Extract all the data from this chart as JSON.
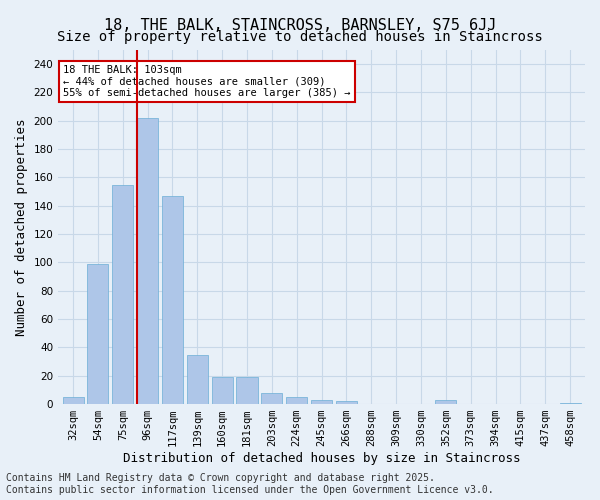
{
  "title1": "18, THE BALK, STAINCROSS, BARNSLEY, S75 6JJ",
  "title2": "Size of property relative to detached houses in Staincross",
  "xlabel": "Distribution of detached houses by size in Staincross",
  "ylabel": "Number of detached properties",
  "categories": [
    "32sqm",
    "54sqm",
    "75sqm",
    "96sqm",
    "117sqm",
    "139sqm",
    "160sqm",
    "181sqm",
    "203sqm",
    "224sqm",
    "245sqm",
    "266sqm",
    "288sqm",
    "309sqm",
    "330sqm",
    "352sqm",
    "373sqm",
    "394sqm",
    "415sqm",
    "437sqm",
    "458sqm"
  ],
  "values": [
    5,
    99,
    155,
    202,
    147,
    35,
    19,
    19,
    8,
    5,
    3,
    2,
    0,
    0,
    0,
    3,
    0,
    0,
    0,
    0,
    1
  ],
  "bar_color": "#aec6e8",
  "bar_edgecolor": "#6baed6",
  "highlight_index": 3,
  "highlight_bar_color": "#aec6e8",
  "highlight_line_color": "#cc0000",
  "annotation_text": "18 THE BALK: 103sqm\n← 44% of detached houses are smaller (309)\n55% of semi-detached houses are larger (385) →",
  "annotation_box_edgecolor": "#cc0000",
  "annotation_box_facecolor": "#ffffff",
  "ylim": [
    0,
    250
  ],
  "yticks": [
    0,
    20,
    40,
    60,
    80,
    100,
    120,
    140,
    160,
    180,
    200,
    220,
    240
  ],
  "grid_color": "#c8d8e8",
  "bg_color": "#e8f0f8",
  "footer": "Contains HM Land Registry data © Crown copyright and database right 2025.\nContains public sector information licensed under the Open Government Licence v3.0.",
  "title1_fontsize": 11,
  "title2_fontsize": 10,
  "axis_fontsize": 9,
  "tick_fontsize": 7.5,
  "footer_fontsize": 7
}
